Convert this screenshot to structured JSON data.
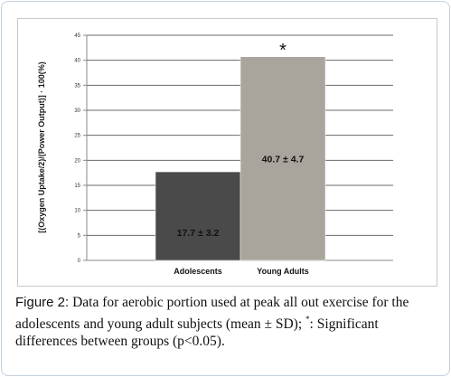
{
  "chart_data": {
    "type": "bar",
    "categories": [
      "Adolescents",
      "Young Adults"
    ],
    "values": [
      17.7,
      40.7
    ],
    "sd": [
      3.2,
      4.7
    ],
    "data_labels": [
      "17.7 ± 3.2",
      "40.7 ± 4.7"
    ],
    "annotations": [
      {
        "category": "Young Adults",
        "text": "*"
      }
    ],
    "ylabel": "[(Oxygen Uptake/2)/(Power Output)] · 100(%)",
    "xlabel": "",
    "ylim": [
      0,
      45
    ],
    "yticks": [
      0,
      5,
      10,
      15,
      20,
      25,
      30,
      35,
      40,
      45
    ],
    "grid": true,
    "colors": [
      "#4a4a4a",
      "#a9a59c"
    ]
  },
  "caption": {
    "label": "Figure 2:",
    "text_before": " Data for aerobic portion used at peak all out exercise for the adolescents and young adult subjects (mean ± SD); ",
    "marker": "*",
    "text_after": ": Significant differences between groups (p<0.05)."
  }
}
